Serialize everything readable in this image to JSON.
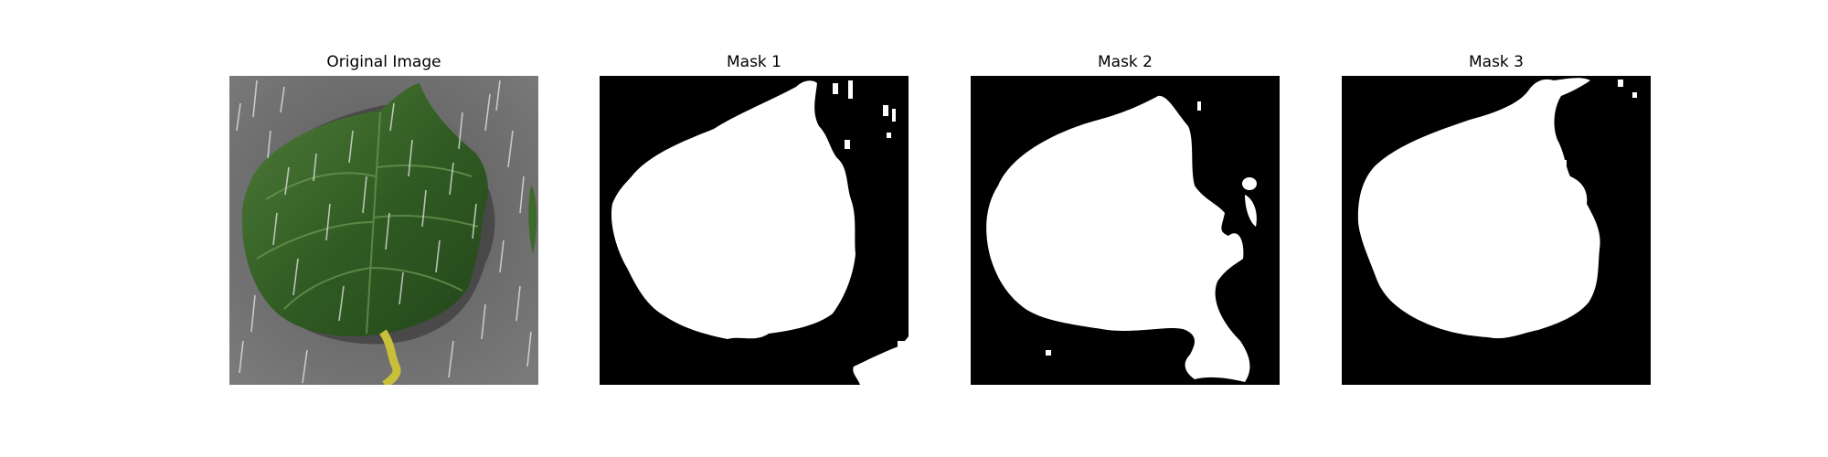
{
  "panels": [
    {
      "title": "Original Image"
    },
    {
      "title": "Mask 1"
    },
    {
      "title": "Mask 2"
    },
    {
      "title": "Mask 3"
    }
  ],
  "colors": {
    "background": "#ffffff",
    "mask_foreground": "#ffffff",
    "mask_background": "#000000",
    "leaf_green": "#3f6b2c",
    "ground_gray": "#6b6b6b"
  }
}
